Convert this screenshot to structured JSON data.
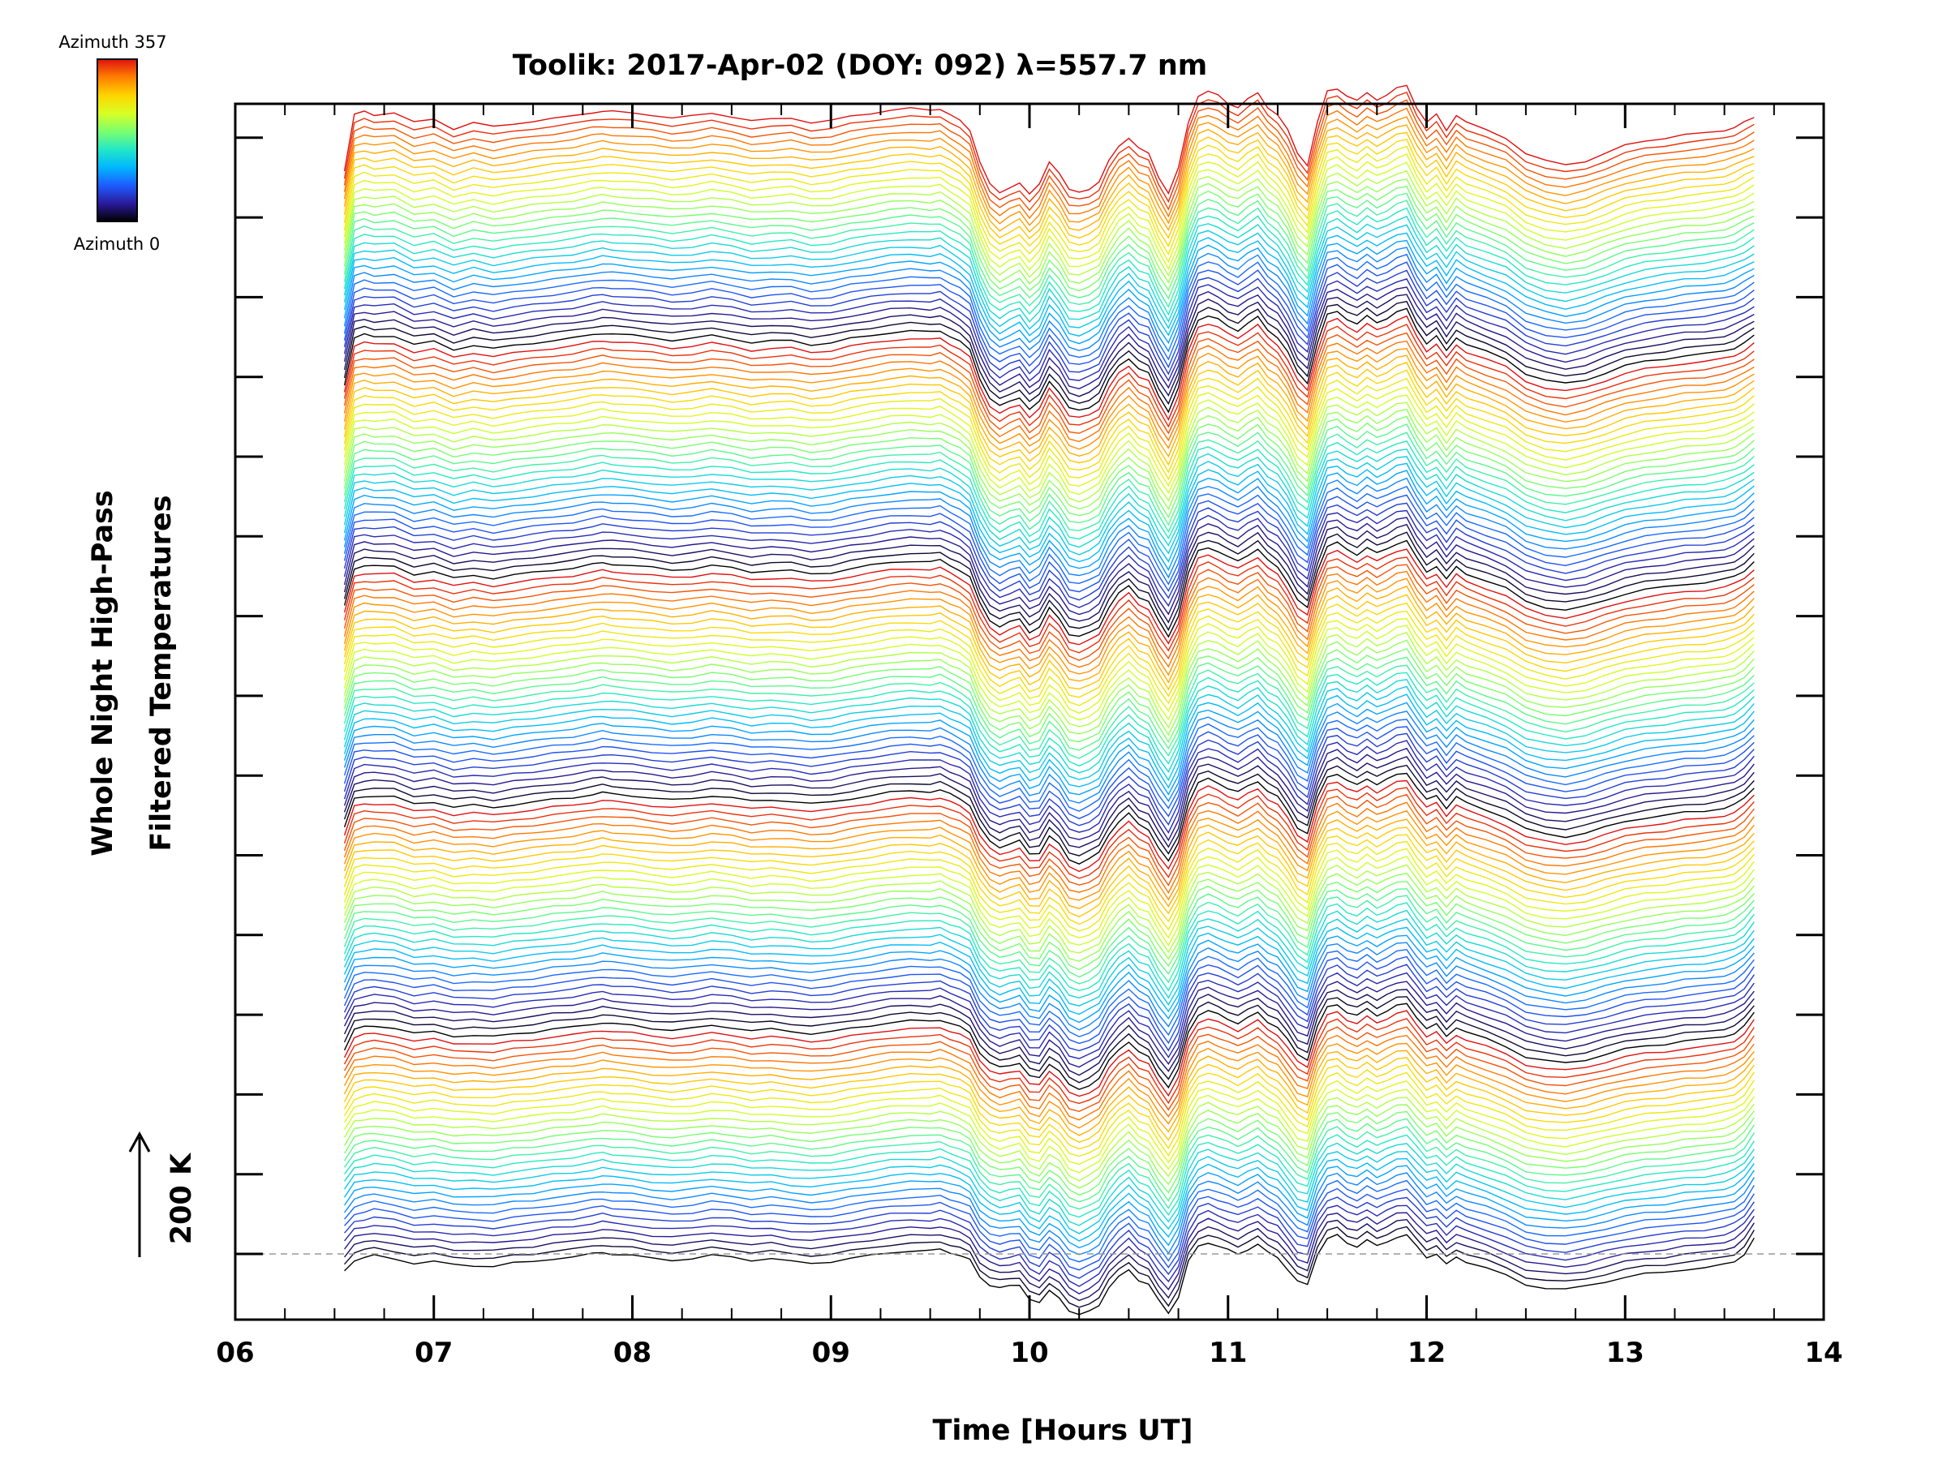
{
  "chart_data": {
    "type": "line",
    "title": "Toolik: 2017-Apr-02 (DOY: 092) λ=557.7 nm",
    "xlabel": "Time [Hours UT]",
    "ylabel_line1": "Whole Night High-Pass",
    "ylabel_line2": "Filtered Temperatures",
    "scale_bar_label": "200 K",
    "colorbar": {
      "top_label": "Azimuth 357",
      "bottom_label": "Azimuth 0",
      "colormap": [
        "#000000",
        "#2a1a9c",
        "#1d5cff",
        "#00b7ff",
        "#23e8c6",
        "#7cff6e",
        "#d8ff23",
        "#ffd400",
        "#ff7f00",
        "#e01010"
      ]
    },
    "xlim": [
      6,
      14
    ],
    "x_tick_labels": [
      "06",
      "07",
      "08",
      "09",
      "10",
      "11",
      "12",
      "13",
      "14"
    ],
    "x_ticks": [
      6,
      7,
      8,
      9,
      10,
      11,
      12,
      13,
      14
    ],
    "y_tick_count": 15,
    "grid": false,
    "time_range": [
      6.55,
      13.65
    ],
    "series_count": 150,
    "cycle_length": 30,
    "baseline_style": "dashed-gray",
    "profile_x": [
      6.55,
      6.6,
      6.65,
      6.7,
      6.8,
      6.9,
      7.0,
      7.1,
      7.2,
      7.3,
      7.4,
      7.5,
      7.6,
      7.7,
      7.8,
      7.85,
      7.9,
      8.0,
      8.1,
      8.2,
      8.3,
      8.4,
      8.5,
      8.6,
      8.7,
      8.8,
      8.9,
      9.0,
      9.1,
      9.2,
      9.3,
      9.4,
      9.5,
      9.55,
      9.6,
      9.65,
      9.7,
      9.75,
      9.8,
      9.85,
      9.9,
      9.95,
      10.0,
      10.05,
      10.1,
      10.15,
      10.2,
      10.25,
      10.3,
      10.35,
      10.4,
      10.45,
      10.5,
      10.55,
      10.6,
      10.65,
      10.7,
      10.75,
      10.8,
      10.85,
      10.9,
      10.95,
      11.0,
      11.05,
      11.1,
      11.15,
      11.2,
      11.25,
      11.3,
      11.35,
      11.4,
      11.45,
      11.5,
      11.55,
      11.6,
      11.65,
      11.7,
      11.75,
      11.8,
      11.85,
      11.9,
      11.95,
      12.0,
      12.05,
      12.1,
      12.15,
      12.2,
      12.3,
      12.4,
      12.5,
      12.6,
      12.7,
      12.8,
      12.9,
      13.0,
      13.1,
      13.2,
      13.3,
      13.4,
      13.5,
      13.55,
      13.6,
      13.65
    ],
    "profile_top": [
      -42,
      30,
      34,
      30,
      33,
      20,
      24,
      12,
      20,
      14,
      18,
      22,
      25,
      28,
      33,
      35,
      34,
      32,
      30,
      26,
      28,
      32,
      28,
      22,
      24,
      26,
      20,
      22,
      28,
      32,
      36,
      38,
      36,
      38,
      30,
      22,
      10,
      -30,
      -60,
      -72,
      -64,
      -58,
      -74,
      -60,
      -30,
      -46,
      -68,
      -70,
      -66,
      -58,
      -30,
      -10,
      0,
      -14,
      -20,
      -50,
      -72,
      -40,
      20,
      55,
      60,
      55,
      45,
      40,
      50,
      58,
      40,
      30,
      10,
      -20,
      -35,
      20,
      60,
      64,
      55,
      48,
      58,
      50,
      56,
      64,
      68,
      40,
      20,
      30,
      10,
      30,
      20,
      10,
      0,
      -20,
      -30,
      -35,
      -30,
      -20,
      -10,
      -4,
      0,
      4,
      6,
      10,
      14,
      20,
      26
    ],
    "profile_bottom": [
      -22,
      -8,
      -5,
      -2,
      -6,
      -12,
      -10,
      -14,
      -15,
      -16,
      -12,
      -10,
      -6,
      -4,
      0,
      2,
      0,
      -2,
      -6,
      -8,
      -6,
      -2,
      -4,
      -8,
      -6,
      -10,
      -12,
      -10,
      -6,
      -2,
      2,
      4,
      4,
      6,
      2,
      -2,
      -8,
      -30,
      -40,
      -44,
      -42,
      -40,
      -58,
      -64,
      -48,
      -56,
      -74,
      -80,
      -74,
      -66,
      -44,
      -30,
      -20,
      -34,
      -40,
      -60,
      -76,
      -56,
      -10,
      10,
      15,
      10,
      5,
      0,
      6,
      12,
      2,
      -4,
      -20,
      -36,
      -40,
      0,
      20,
      24,
      14,
      10,
      18,
      10,
      16,
      22,
      24,
      10,
      -4,
      0,
      -14,
      -4,
      -10,
      -18,
      -28,
      -40,
      -44,
      -46,
      -42,
      -36,
      -30,
      -26,
      -24,
      -20,
      -18,
      -14,
      -10,
      0,
      20
    ]
  }
}
